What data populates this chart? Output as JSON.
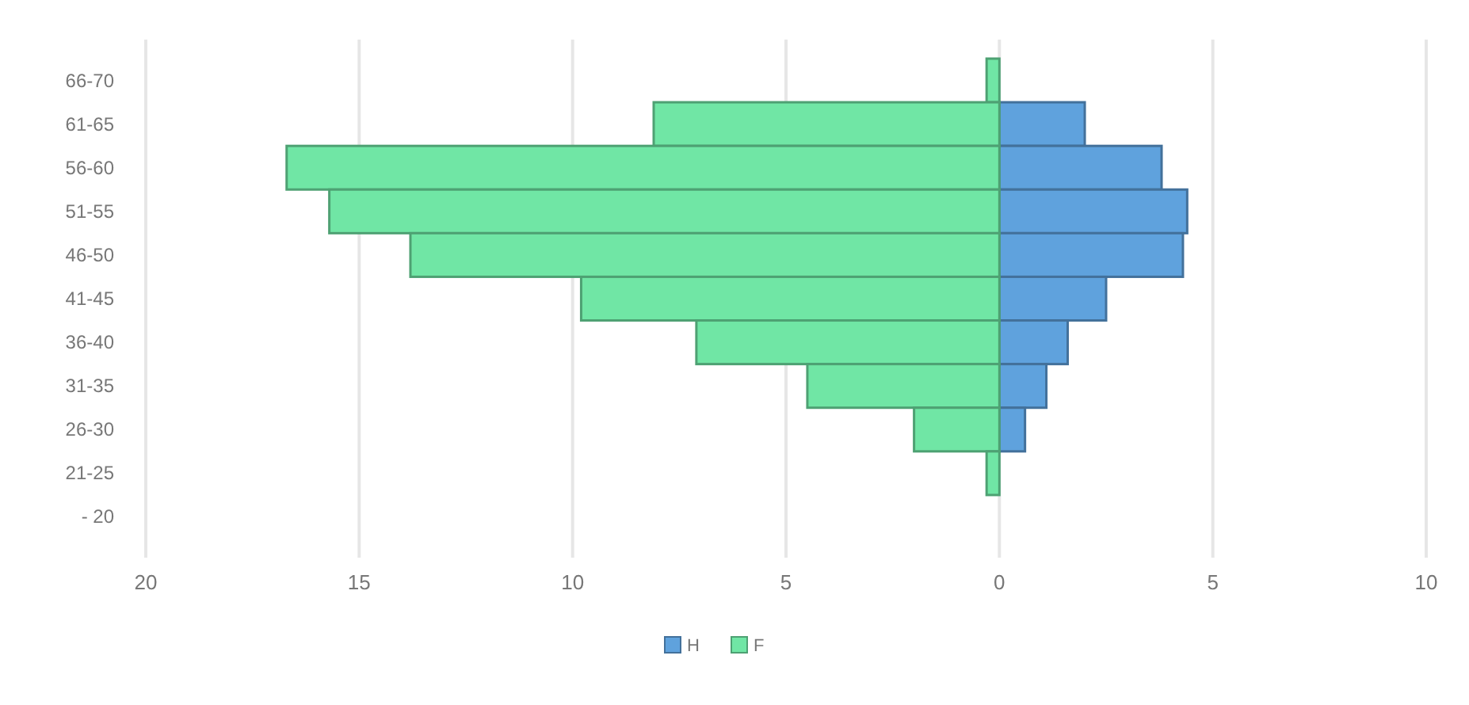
{
  "chart_data": {
    "type": "bar",
    "orientation": "horizontal",
    "categories": [
      "66-70",
      "61-65",
      "56-60",
      "51-55",
      "46-50",
      "41-45",
      "36-40",
      "31-35",
      "26-30",
      "21-25",
      "- 20"
    ],
    "series": [
      {
        "name": "H",
        "color": "#5fa2dd",
        "values": [
          0,
          2.0,
          3.8,
          4.4,
          4.3,
          2.5,
          1.6,
          1.1,
          0.6,
          0,
          0
        ]
      },
      {
        "name": "F",
        "color": "#70e6a5",
        "values": [
          -0.3,
          -8.1,
          -16.7,
          -15.7,
          -13.8,
          -9.8,
          -7.1,
          -4.5,
          -2.0,
          -0.3,
          0
        ]
      }
    ],
    "xlim": [
      -20,
      10
    ],
    "xticks": [
      {
        "value": -20,
        "label": "20"
      },
      {
        "value": -15,
        "label": "15"
      },
      {
        "value": -10,
        "label": "10"
      },
      {
        "value": -5,
        "label": "5"
      },
      0,
      5,
      10
    ],
    "grid": "x",
    "legend": "bottom",
    "stacked": true
  }
}
